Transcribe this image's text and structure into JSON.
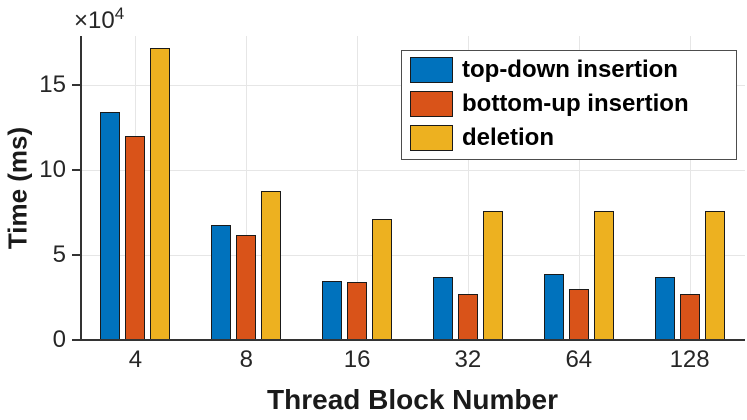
{
  "chart_data": {
    "type": "bar",
    "title": "",
    "xlabel": "Thread Block Number",
    "ylabel": "Time (ms)",
    "y_axis_multiplier": {
      "base": "×10",
      "exponent": "4"
    },
    "values_unit": "×10^4 ms",
    "categories": [
      "4",
      "8",
      "16",
      "32",
      "64",
      "128"
    ],
    "series": [
      {
        "name": "top-down insertion",
        "color": "#0072BD",
        "values": [
          13.4,
          6.8,
          3.5,
          3.7,
          3.9,
          3.7
        ]
      },
      {
        "name": "bottom-up insertion",
        "color": "#D95319",
        "values": [
          12.0,
          6.2,
          3.4,
          2.7,
          3.0,
          2.7
        ]
      },
      {
        "name": "deletion",
        "color": "#EDB120",
        "values": [
          17.2,
          8.8,
          7.1,
          7.6,
          7.6,
          7.6
        ]
      }
    ],
    "yticks": [
      0,
      5,
      10,
      15
    ],
    "ylim": [
      0,
      17.9
    ],
    "grid": true,
    "legend_position": "top-right",
    "colors": {
      "axis": "#333333",
      "grid": "#e6e6e6",
      "tick_text": "#262626",
      "label_text": "#1a1a1a",
      "bar_edge": "#1a1a1a",
      "legend_border": "#4d4d4d",
      "background": "#ffffff"
    }
  }
}
